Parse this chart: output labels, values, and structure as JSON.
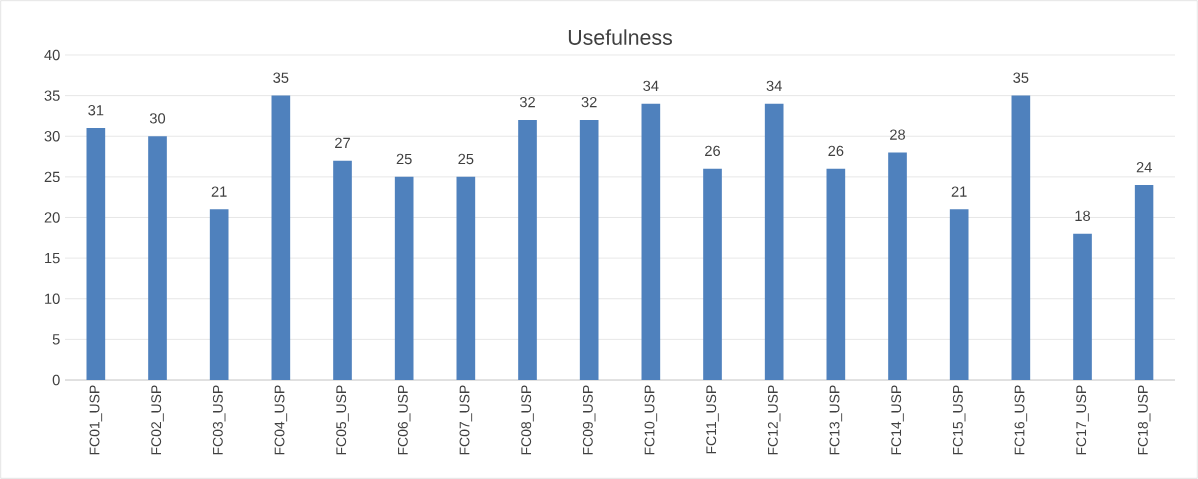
{
  "chart_data": {
    "type": "bar",
    "title": "Usefulness",
    "categories": [
      "FC01_USP",
      "FC02_USP",
      "FC03_USP",
      "FC04_USP",
      "FC05_USP",
      "FC06_USP",
      "FC07_USP",
      "FC08_USP",
      "FC09_USP",
      "FC10_USP",
      "FC11_USP",
      "FC12_USP",
      "FC13_USP",
      "FC14_USP",
      "FC15_USP",
      "FC16_USP",
      "FC17_USP",
      "FC18_USP"
    ],
    "values": [
      31,
      30,
      21,
      35,
      27,
      25,
      25,
      32,
      32,
      34,
      26,
      34,
      26,
      28,
      21,
      35,
      18,
      24
    ],
    "color": "#4f81bd",
    "ylim": [
      0,
      40
    ],
    "yticks": [
      0,
      5,
      10,
      15,
      20,
      25,
      30,
      35,
      40
    ],
    "grid": "y",
    "data_labels": true
  }
}
